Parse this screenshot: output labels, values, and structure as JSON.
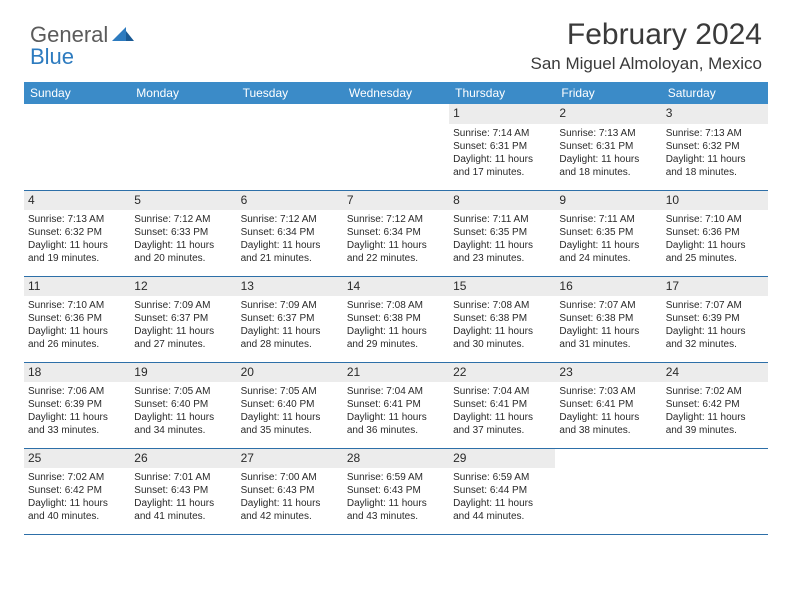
{
  "logo": {
    "textGray": "General",
    "textBlue": "Blue"
  },
  "header": {
    "title": "February 2024",
    "location": "San Miguel Almoloyan, Mexico"
  },
  "colors": {
    "headerBar": "#3b8bc8",
    "headerText": "#ffffff",
    "dayBg": "#ececec",
    "ruleLine": "#2d6fa8",
    "bodyText": "#2a2a2a",
    "logoGray": "#5b5b5b",
    "logoBlue": "#2d7bbf"
  },
  "calendar": {
    "weekdays": [
      "Sunday",
      "Monday",
      "Tuesday",
      "Wednesday",
      "Thursday",
      "Friday",
      "Saturday"
    ],
    "startWeekday": 4,
    "daysInMonth": 29,
    "days": [
      {
        "n": 1,
        "sunrise": "7:14 AM",
        "sunset": "6:31 PM",
        "daylight": "11 hours and 17 minutes."
      },
      {
        "n": 2,
        "sunrise": "7:13 AM",
        "sunset": "6:31 PM",
        "daylight": "11 hours and 18 minutes."
      },
      {
        "n": 3,
        "sunrise": "7:13 AM",
        "sunset": "6:32 PM",
        "daylight": "11 hours and 18 minutes."
      },
      {
        "n": 4,
        "sunrise": "7:13 AM",
        "sunset": "6:32 PM",
        "daylight": "11 hours and 19 minutes."
      },
      {
        "n": 5,
        "sunrise": "7:12 AM",
        "sunset": "6:33 PM",
        "daylight": "11 hours and 20 minutes."
      },
      {
        "n": 6,
        "sunrise": "7:12 AM",
        "sunset": "6:34 PM",
        "daylight": "11 hours and 21 minutes."
      },
      {
        "n": 7,
        "sunrise": "7:12 AM",
        "sunset": "6:34 PM",
        "daylight": "11 hours and 22 minutes."
      },
      {
        "n": 8,
        "sunrise": "7:11 AM",
        "sunset": "6:35 PM",
        "daylight": "11 hours and 23 minutes."
      },
      {
        "n": 9,
        "sunrise": "7:11 AM",
        "sunset": "6:35 PM",
        "daylight": "11 hours and 24 minutes."
      },
      {
        "n": 10,
        "sunrise": "7:10 AM",
        "sunset": "6:36 PM",
        "daylight": "11 hours and 25 minutes."
      },
      {
        "n": 11,
        "sunrise": "7:10 AM",
        "sunset": "6:36 PM",
        "daylight": "11 hours and 26 minutes."
      },
      {
        "n": 12,
        "sunrise": "7:09 AM",
        "sunset": "6:37 PM",
        "daylight": "11 hours and 27 minutes."
      },
      {
        "n": 13,
        "sunrise": "7:09 AM",
        "sunset": "6:37 PM",
        "daylight": "11 hours and 28 minutes."
      },
      {
        "n": 14,
        "sunrise": "7:08 AM",
        "sunset": "6:38 PM",
        "daylight": "11 hours and 29 minutes."
      },
      {
        "n": 15,
        "sunrise": "7:08 AM",
        "sunset": "6:38 PM",
        "daylight": "11 hours and 30 minutes."
      },
      {
        "n": 16,
        "sunrise": "7:07 AM",
        "sunset": "6:38 PM",
        "daylight": "11 hours and 31 minutes."
      },
      {
        "n": 17,
        "sunrise": "7:07 AM",
        "sunset": "6:39 PM",
        "daylight": "11 hours and 32 minutes."
      },
      {
        "n": 18,
        "sunrise": "7:06 AM",
        "sunset": "6:39 PM",
        "daylight": "11 hours and 33 minutes."
      },
      {
        "n": 19,
        "sunrise": "7:05 AM",
        "sunset": "6:40 PM",
        "daylight": "11 hours and 34 minutes."
      },
      {
        "n": 20,
        "sunrise": "7:05 AM",
        "sunset": "6:40 PM",
        "daylight": "11 hours and 35 minutes."
      },
      {
        "n": 21,
        "sunrise": "7:04 AM",
        "sunset": "6:41 PM",
        "daylight": "11 hours and 36 minutes."
      },
      {
        "n": 22,
        "sunrise": "7:04 AM",
        "sunset": "6:41 PM",
        "daylight": "11 hours and 37 minutes."
      },
      {
        "n": 23,
        "sunrise": "7:03 AM",
        "sunset": "6:41 PM",
        "daylight": "11 hours and 38 minutes."
      },
      {
        "n": 24,
        "sunrise": "7:02 AM",
        "sunset": "6:42 PM",
        "daylight": "11 hours and 39 minutes."
      },
      {
        "n": 25,
        "sunrise": "7:02 AM",
        "sunset": "6:42 PM",
        "daylight": "11 hours and 40 minutes."
      },
      {
        "n": 26,
        "sunrise": "7:01 AM",
        "sunset": "6:43 PM",
        "daylight": "11 hours and 41 minutes."
      },
      {
        "n": 27,
        "sunrise": "7:00 AM",
        "sunset": "6:43 PM",
        "daylight": "11 hours and 42 minutes."
      },
      {
        "n": 28,
        "sunrise": "6:59 AM",
        "sunset": "6:43 PM",
        "daylight": "11 hours and 43 minutes."
      },
      {
        "n": 29,
        "sunrise": "6:59 AM",
        "sunset": "6:44 PM",
        "daylight": "11 hours and 44 minutes."
      }
    ]
  },
  "labels": {
    "sunrise": "Sunrise:",
    "sunset": "Sunset:",
    "daylight": "Daylight:"
  }
}
